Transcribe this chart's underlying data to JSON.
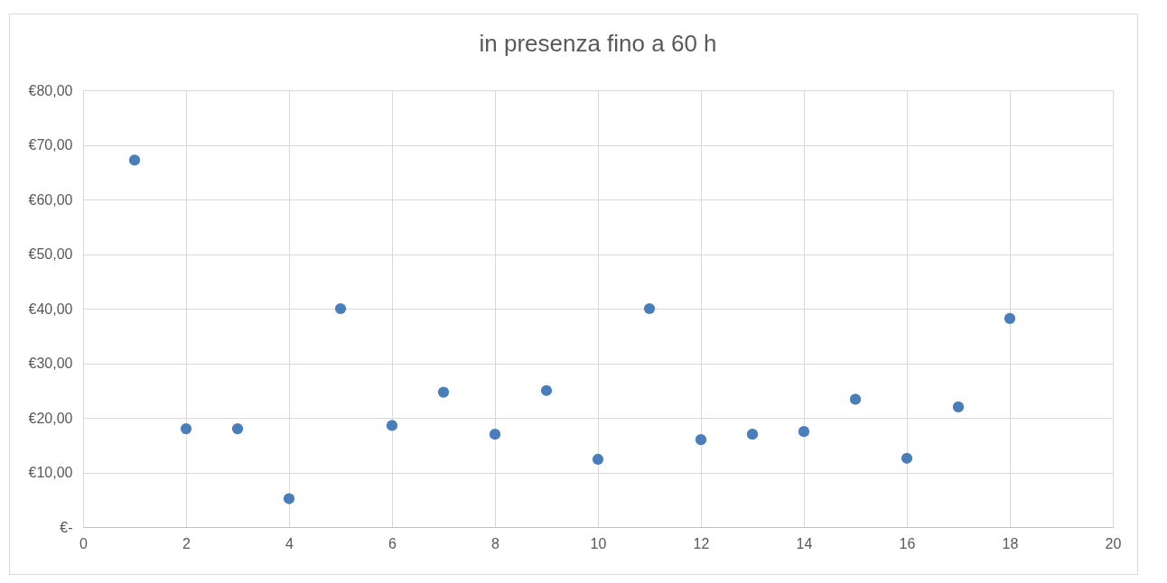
{
  "chart_data": {
    "type": "scatter",
    "title": "in presenza fino a 60 h",
    "x": [
      1,
      2,
      3,
      4,
      5,
      6,
      7,
      8,
      9,
      10,
      11,
      12,
      13,
      14,
      15,
      16,
      17,
      18
    ],
    "series": [
      {
        "color": "#4a7ebb",
        "values": [
          67.2,
          18,
          18,
          5.2,
          40,
          18.6,
          24.7,
          17,
          25,
          12.4,
          40,
          16,
          17,
          17.5,
          23.4,
          12.6,
          22,
          38.2
        ]
      }
    ],
    "xlim": [
      0,
      20
    ],
    "xticks": [
      0,
      2,
      4,
      6,
      8,
      10,
      12,
      14,
      16,
      18,
      20
    ],
    "ylim": [
      0,
      80
    ],
    "yticks": [
      {
        "value": 0,
        "label": "€-"
      },
      {
        "value": 10,
        "label": "€10,00"
      },
      {
        "value": 20,
        "label": "€20,00"
      },
      {
        "value": 30,
        "label": "€30,00"
      },
      {
        "value": 40,
        "label": "€40,00"
      },
      {
        "value": 50,
        "label": "€50,00"
      },
      {
        "value": 60,
        "label": "€60,00"
      },
      {
        "value": 70,
        "label": "€70,00"
      },
      {
        "value": 80,
        "label": "€80,00"
      }
    ],
    "grid": true,
    "marker": "circle"
  }
}
